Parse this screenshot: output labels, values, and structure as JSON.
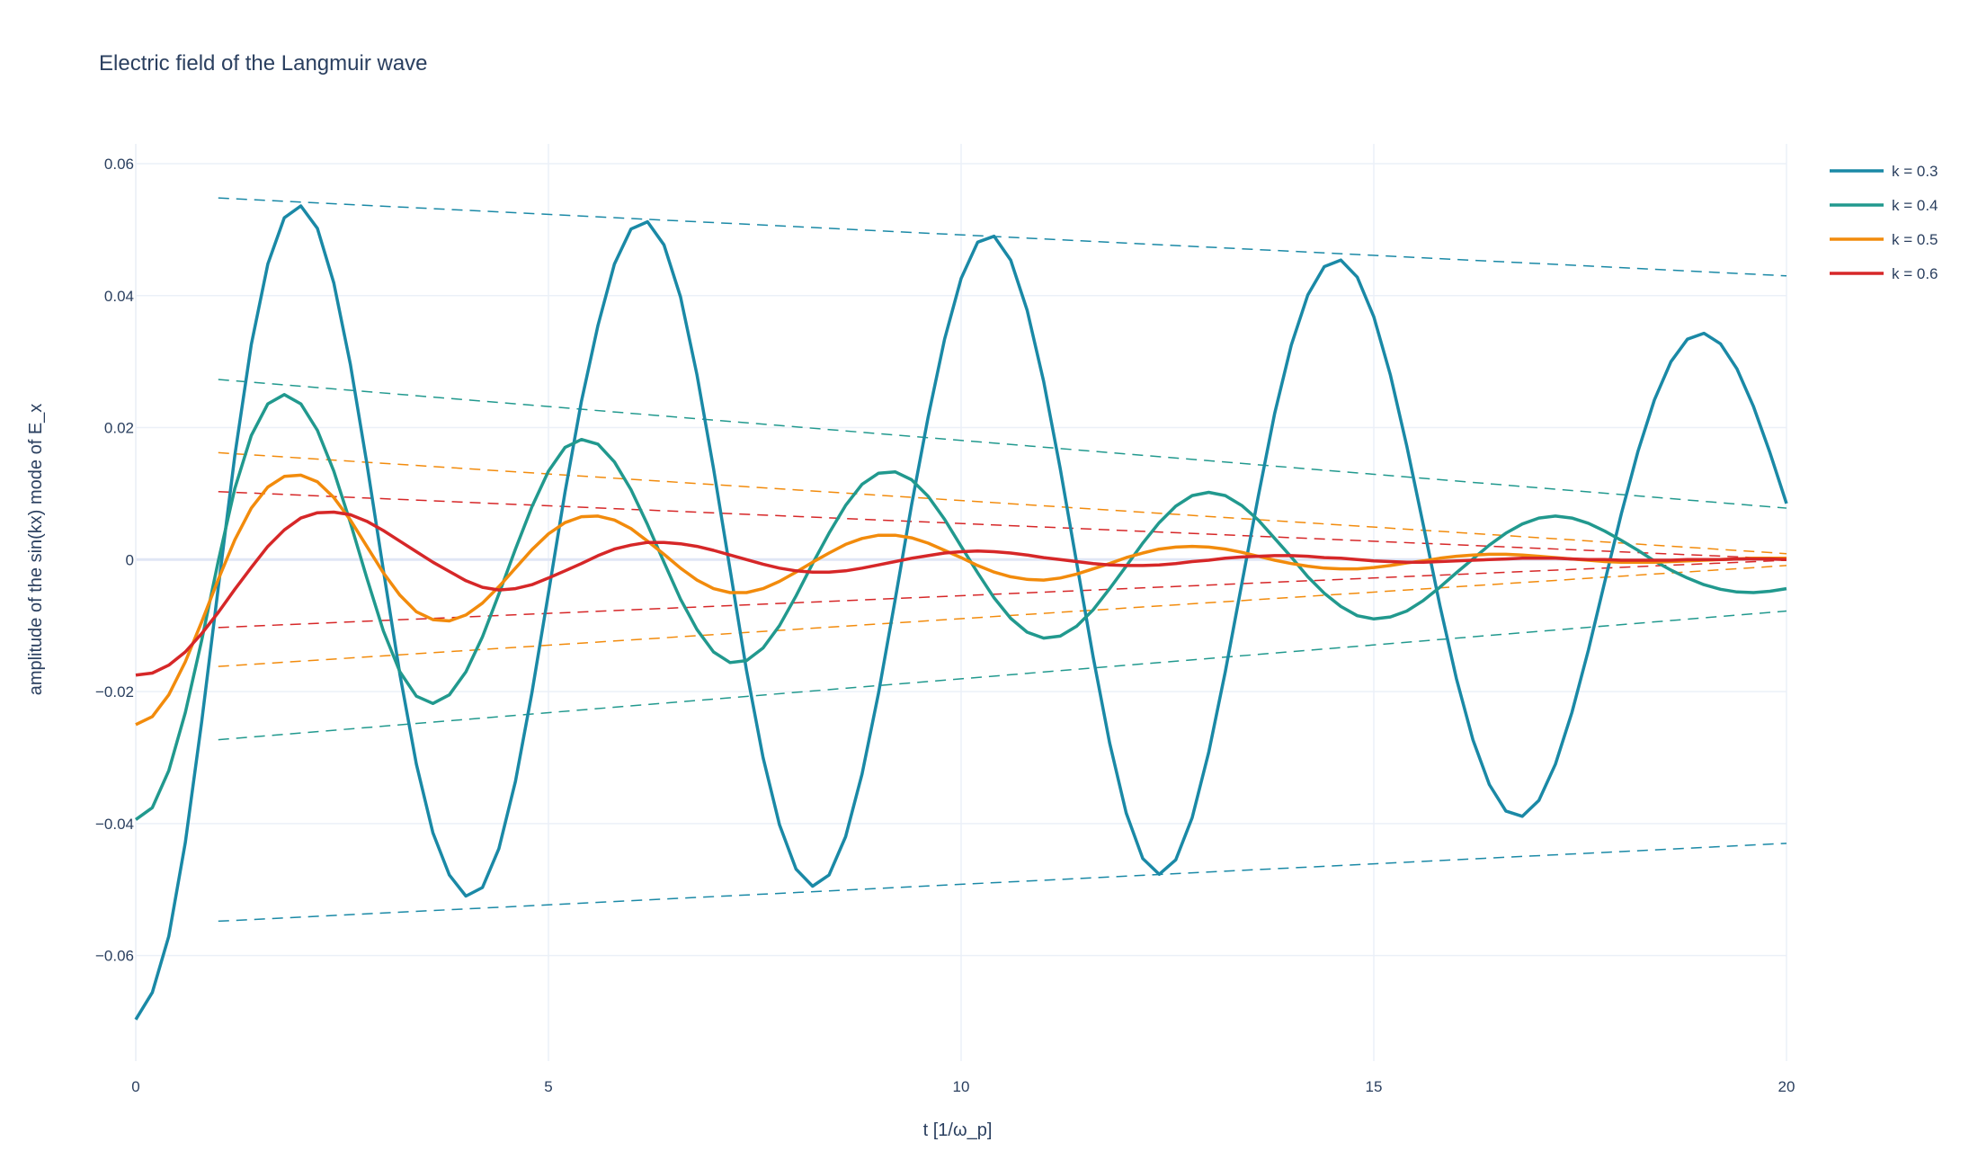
{
  "chart_data": {
    "type": "line",
    "title": "Electric field of the Langmuir wave",
    "xlabel": "t [1/ω_p]",
    "ylabel": "amplitude of the sin(kx) mode of E_x",
    "xlim": [
      0,
      20
    ],
    "ylim": [
      -0.076,
      0.063
    ],
    "x_ticks": [
      0,
      5,
      10,
      15,
      20
    ],
    "x_tick_labels": [
      "0",
      "5",
      "10",
      "15",
      "20"
    ],
    "y_ticks": [
      -0.06,
      -0.04,
      -0.02,
      0,
      0.02,
      0.04,
      0.06
    ],
    "y_tick_labels": [
      "−0.06",
      "−0.04",
      "−0.02",
      "0",
      "0.02",
      "0.04",
      "0.06"
    ],
    "grid": true,
    "legend_position": "top-right",
    "series": [
      {
        "name": "k = 0.3",
        "color": "#1a89a6",
        "style": "solid",
        "x": [
          0,
          0.2,
          0.4,
          0.6,
          0.8,
          1.0,
          1.2,
          1.4,
          1.6,
          1.8,
          2.0,
          2.2,
          2.4,
          2.6,
          2.8,
          3.0,
          3.2,
          3.4,
          3.6,
          3.8,
          4.0,
          4.2,
          4.4,
          4.6,
          4.8,
          5.0,
          5.2,
          5.4,
          5.6,
          5.8,
          6.0,
          6.2,
          6.4,
          6.6,
          6.8,
          7.0,
          7.2,
          7.4,
          7.6,
          7.8,
          8.0,
          8.2,
          8.4,
          8.6,
          8.8,
          9.0,
          9.2,
          9.4,
          9.6,
          9.8,
          10.0,
          10.2,
          10.4,
          10.6,
          10.8,
          11.0,
          11.2,
          11.4,
          11.6,
          11.8,
          12.0,
          12.2,
          12.4,
          12.6,
          12.8,
          13.0,
          13.2,
          13.4,
          13.6,
          13.8,
          14.0,
          14.2,
          14.4,
          14.6,
          14.8,
          15.0,
          15.2,
          15.4,
          15.6,
          15.8,
          16.0,
          16.2,
          16.4,
          16.6,
          16.8,
          17.0,
          17.2,
          17.4,
          17.6,
          17.8,
          18.0,
          18.2,
          18.4,
          18.6,
          18.8,
          19.0,
          19.2,
          19.4,
          19.6,
          19.8,
          20.0
        ],
        "y": [
          -0.0697,
          -0.0656,
          -0.0571,
          -0.0429,
          -0.0245,
          -0.0042,
          0.0158,
          0.0326,
          0.0448,
          0.0518,
          0.0536,
          0.0502,
          0.0419,
          0.0296,
          0.0146,
          -0.0016,
          -0.0174,
          -0.031,
          -0.0414,
          -0.0478,
          -0.051,
          -0.0497,
          -0.0438,
          -0.0336,
          -0.0202,
          -0.0051,
          0.0102,
          0.024,
          0.0355,
          0.0448,
          0.0501,
          0.0512,
          0.0477,
          0.0398,
          0.028,
          0.0138,
          -0.0015,
          -0.0168,
          -0.03,
          -0.0402,
          -0.0469,
          -0.0495,
          -0.0478,
          -0.042,
          -0.0325,
          -0.0202,
          -0.0061,
          0.0083,
          0.0216,
          0.0334,
          0.0426,
          0.0481,
          0.049,
          0.0454,
          0.0378,
          0.027,
          0.0138,
          -0.0005,
          -0.0148,
          -0.0278,
          -0.0384,
          -0.0453,
          -0.0477,
          -0.0455,
          -0.0391,
          -0.0292,
          -0.017,
          -0.0037,
          0.0096,
          0.0222,
          0.0325,
          0.0401,
          0.0444,
          0.0454,
          0.0428,
          0.0368,
          0.028,
          0.0172,
          0.0052,
          -0.0069,
          -0.018,
          -0.0273,
          -0.0341,
          -0.0381,
          -0.0389,
          -0.0365,
          -0.031,
          -0.0232,
          -0.0137,
          -0.0033,
          0.007,
          0.0164,
          0.0242,
          0.03,
          0.0334,
          0.0343,
          0.0327,
          0.0289,
          0.0232,
          0.0162,
          0.0085
        ]
      },
      {
        "name": "k = 0.4",
        "color": "#21998e",
        "style": "solid",
        "x": [
          0,
          0.2,
          0.4,
          0.6,
          0.8,
          1.0,
          1.2,
          1.4,
          1.6,
          1.8,
          2.0,
          2.2,
          2.4,
          2.6,
          2.8,
          3.0,
          3.2,
          3.4,
          3.6,
          3.8,
          4.0,
          4.2,
          4.4,
          4.6,
          4.8,
          5.0,
          5.2,
          5.4,
          5.6,
          5.8,
          6.0,
          6.2,
          6.4,
          6.6,
          6.8,
          7.0,
          7.2,
          7.4,
          7.6,
          7.8,
          8.0,
          8.2,
          8.4,
          8.6,
          8.8,
          9.0,
          9.2,
          9.4,
          9.6,
          9.8,
          10.0,
          10.2,
          10.4,
          10.6,
          10.8,
          11.0,
          11.2,
          11.4,
          11.6,
          11.8,
          12.0,
          12.2,
          12.4,
          12.6,
          12.8,
          13.0,
          13.2,
          13.4,
          13.6,
          13.8,
          14.0,
          14.2,
          14.4,
          14.6,
          14.8,
          15.0,
          15.2,
          15.4,
          15.6,
          15.8,
          16.0,
          16.2,
          16.4,
          16.6,
          16.8,
          17.0,
          17.2,
          17.4,
          17.6,
          17.8,
          18.0,
          18.2,
          18.4,
          18.6,
          18.8,
          19.0,
          19.2,
          19.4,
          19.6,
          19.8,
          20.0
        ],
        "y": [
          -0.0394,
          -0.0376,
          -0.032,
          -0.0232,
          -0.0122,
          -0.0002,
          0.0108,
          0.0188,
          0.0236,
          0.025,
          0.0236,
          0.0196,
          0.0134,
          0.0056,
          -0.0028,
          -0.0108,
          -0.017,
          -0.0207,
          -0.0218,
          -0.0205,
          -0.017,
          -0.0117,
          -0.0052,
          0.0016,
          0.008,
          0.0134,
          0.017,
          0.0182,
          0.0175,
          0.0148,
          0.0106,
          0.0053,
          -0.0004,
          -0.006,
          -0.0106,
          -0.014,
          -0.0156,
          -0.0153,
          -0.0134,
          -0.01,
          -0.0055,
          -0.0006,
          0.004,
          0.0082,
          0.0114,
          0.0131,
          0.0133,
          0.0121,
          0.0096,
          0.0061,
          0.002,
          -0.002,
          -0.0058,
          -0.0089,
          -0.011,
          -0.0119,
          -0.0116,
          -0.0101,
          -0.0076,
          -0.0044,
          -0.001,
          0.0025,
          0.0056,
          0.0081,
          0.0097,
          0.0102,
          0.0097,
          0.0082,
          0.006,
          0.0032,
          0.0004,
          -0.0026,
          -0.0051,
          -0.0071,
          -0.0085,
          -0.009,
          -0.0087,
          -0.0078,
          -0.0062,
          -0.0042,
          -0.002,
          0.0001,
          0.0022,
          0.004,
          0.0054,
          0.0063,
          0.0066,
          0.0063,
          0.0055,
          0.0043,
          0.0029,
          0.0014,
          -0.0002,
          -0.0016,
          -0.0028,
          -0.0038,
          -0.0045,
          -0.0049,
          -0.005,
          -0.0048,
          -0.0044
        ]
      },
      {
        "name": "k = 0.5",
        "color": "#f28b0c",
        "style": "solid",
        "x": [
          0,
          0.2,
          0.4,
          0.6,
          0.8,
          1.0,
          1.2,
          1.4,
          1.6,
          1.8,
          2.0,
          2.2,
          2.4,
          2.6,
          2.8,
          3.0,
          3.2,
          3.4,
          3.6,
          3.8,
          4.0,
          4.2,
          4.4,
          4.6,
          4.8,
          5.0,
          5.2,
          5.4,
          5.6,
          5.8,
          6.0,
          6.2,
          6.4,
          6.6,
          6.8,
          7.0,
          7.2,
          7.4,
          7.6,
          7.8,
          8.0,
          8.2,
          8.4,
          8.6,
          8.8,
          9.0,
          9.2,
          9.4,
          9.6,
          9.8,
          10.0,
          10.2,
          10.4,
          10.6,
          10.8,
          11.0,
          11.2,
          11.4,
          11.6,
          11.8,
          12.0,
          12.2,
          12.4,
          12.6,
          12.8,
          13.0,
          13.2,
          13.4,
          13.6,
          13.8,
          14.0,
          14.2,
          14.4,
          14.6,
          14.8,
          15.0,
          15.2,
          15.4,
          15.6,
          15.8,
          16.0,
          16.2,
          16.4,
          16.6,
          16.8,
          17.0,
          17.2,
          17.4,
          17.6,
          17.8,
          18.0,
          18.2,
          18.4,
          18.6,
          18.8,
          19.0,
          19.2,
          19.4,
          19.6,
          19.8,
          20.0
        ],
        "y": [
          -0.025,
          -0.0238,
          -0.0205,
          -0.0155,
          -0.0094,
          -0.003,
          0.003,
          0.0078,
          0.011,
          0.0126,
          0.0128,
          0.0118,
          0.0094,
          0.006,
          0.002,
          -0.002,
          -0.0054,
          -0.0079,
          -0.0091,
          -0.0093,
          -0.0084,
          -0.0066,
          -0.0041,
          -0.0013,
          0.0015,
          0.0039,
          0.0056,
          0.0065,
          0.0066,
          0.006,
          0.0047,
          0.0028,
          0.0008,
          -0.0013,
          -0.0031,
          -0.0044,
          -0.005,
          -0.005,
          -0.0044,
          -0.0033,
          -0.0019,
          -0.0004,
          0.001,
          0.0023,
          0.0032,
          0.0037,
          0.0037,
          0.0033,
          0.0025,
          0.0014,
          0.0003,
          -0.0009,
          -0.0019,
          -0.0026,
          -0.003,
          -0.0031,
          -0.0028,
          -0.0022,
          -0.0014,
          -0.0006,
          0.0003,
          0.001,
          0.0016,
          0.0019,
          0.002,
          0.0019,
          0.0016,
          0.0011,
          0.0005,
          -0.0001,
          -0.0006,
          -0.001,
          -0.0013,
          -0.0014,
          -0.0014,
          -0.0012,
          -0.0009,
          -0.0005,
          -0.0002,
          0.0002,
          0.0005,
          0.0007,
          0.0008,
          0.0008,
          0.0007,
          0.0005,
          0.0003,
          0.0001,
          -0.0001,
          -0.0003,
          -0.0004,
          -0.0004,
          -0.0004,
          -0.0003,
          -0.0002,
          -0.0001,
          0.0,
          0.0001,
          0.0002,
          0.0002,
          0.0002
        ]
      },
      {
        "name": "k = 0.6",
        "color": "#d62728",
        "style": "solid",
        "x": [
          0,
          0.2,
          0.4,
          0.6,
          0.8,
          1.0,
          1.2,
          1.4,
          1.6,
          1.8,
          2.0,
          2.2,
          2.4,
          2.6,
          2.8,
          3.0,
          3.2,
          3.4,
          3.6,
          3.8,
          4.0,
          4.2,
          4.4,
          4.6,
          4.8,
          5.0,
          5.2,
          5.4,
          5.6,
          5.8,
          6.0,
          6.2,
          6.4,
          6.6,
          6.8,
          7.0,
          7.2,
          7.4,
          7.6,
          7.8,
          8.0,
          8.2,
          8.4,
          8.6,
          8.8,
          9.0,
          9.2,
          9.4,
          9.6,
          9.8,
          10.0,
          10.2,
          10.4,
          10.6,
          10.8,
          11.0,
          11.2,
          11.4,
          11.6,
          11.8,
          12.0,
          12.2,
          12.4,
          12.6,
          12.8,
          13.0,
          13.2,
          13.4,
          13.6,
          13.8,
          14.0,
          14.2,
          14.4,
          14.6,
          14.8,
          15.0,
          15.2,
          15.4,
          15.6,
          15.8,
          16.0,
          16.2,
          16.4,
          16.6,
          16.8,
          17.0,
          17.2,
          17.4,
          17.6,
          17.8,
          18.0,
          18.2,
          18.4,
          18.6,
          18.8,
          19.0,
          19.2,
          19.4,
          19.6,
          19.8,
          20.0
        ],
        "y": [
          -0.0175,
          -0.0172,
          -0.016,
          -0.014,
          -0.0112,
          -0.008,
          -0.0045,
          -0.0012,
          0.002,
          0.0045,
          0.0063,
          0.0071,
          0.0072,
          0.0068,
          0.0058,
          0.0044,
          0.0028,
          0.0012,
          -0.0004,
          -0.0018,
          -0.0032,
          -0.0042,
          -0.0046,
          -0.0044,
          -0.0038,
          -0.0028,
          -0.0017,
          -0.0006,
          0.0006,
          0.0016,
          0.0022,
          0.0026,
          0.0026,
          0.0024,
          0.002,
          0.0014,
          0.0007,
          0.0,
          -0.0007,
          -0.0013,
          -0.0017,
          -0.0019,
          -0.0019,
          -0.0017,
          -0.0013,
          -0.0008,
          -0.0003,
          0.0002,
          0.0006,
          0.001,
          0.0012,
          0.0013,
          0.0012,
          0.001,
          0.0007,
          0.0003,
          0.0,
          -0.0003,
          -0.0006,
          -0.0008,
          -0.0009,
          -0.0009,
          -0.0008,
          -0.0006,
          -0.0003,
          -0.0001,
          0.0002,
          0.0004,
          0.0005,
          0.0006,
          0.0006,
          0.0005,
          0.0003,
          0.0002,
          0.0,
          -0.0002,
          -0.0003,
          -0.0004,
          -0.0004,
          -0.0003,
          -0.0002,
          -0.0001,
          0.0,
          0.0001,
          0.0002,
          0.0002,
          0.0002,
          0.0001,
          0.0,
          0.0,
          -0.0001,
          -0.0001,
          -0.0001,
          -0.0001,
          0.0,
          0.0,
          0.0,
          0.0001,
          0.0001,
          0.0001,
          0.0
        ]
      }
    ],
    "envelopes": [
      {
        "color": "#1a89a6",
        "style": "dashed",
        "x": [
          1,
          20
        ],
        "y_upper": [
          0.0548,
          0.043
        ],
        "y_lower": [
          -0.0548,
          -0.043
        ]
      },
      {
        "color": "#21998e",
        "style": "dashed",
        "x": [
          1,
          20
        ],
        "y_upper": [
          0.0273,
          0.0078
        ],
        "y_lower": [
          -0.0273,
          -0.0078
        ]
      },
      {
        "color": "#f28b0c",
        "style": "dashed",
        "x": [
          1,
          20
        ],
        "y_upper": [
          0.0162,
          0.0009
        ],
        "y_lower": [
          -0.0162,
          -0.0009
        ]
      },
      {
        "color": "#d62728",
        "style": "dashed",
        "x": [
          1,
          20
        ],
        "y_upper": [
          0.0103,
          0.0001
        ],
        "y_lower": [
          -0.0103,
          -0.0001
        ]
      }
    ]
  }
}
